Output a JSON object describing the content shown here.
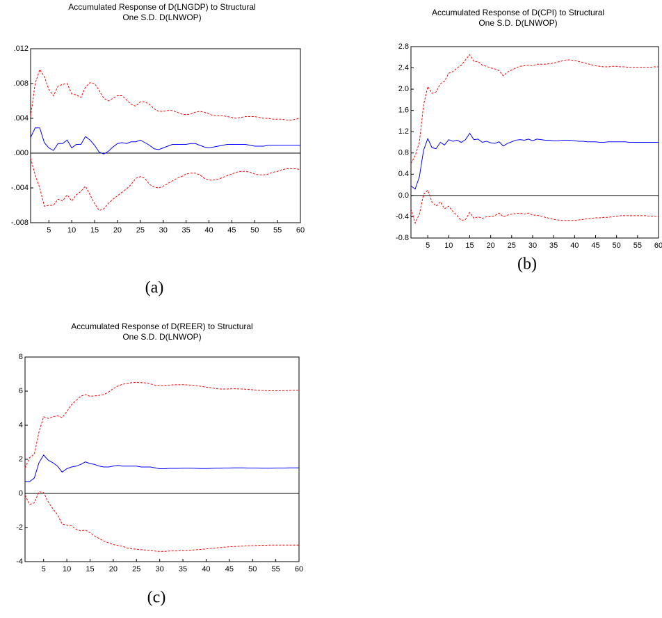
{
  "chart_data": [
    {
      "type": "line",
      "title": [
        "Accumulated Response of D(LNGDP) to Structural",
        "One S.D. D(LNWOP)"
      ],
      "caption": "(a)",
      "x": [
        1,
        2,
        3,
        4,
        5,
        6,
        7,
        8,
        9,
        10,
        11,
        12,
        13,
        14,
        15,
        16,
        17,
        18,
        19,
        20,
        21,
        22,
        23,
        24,
        25,
        26,
        27,
        28,
        29,
        30,
        31,
        32,
        33,
        34,
        35,
        36,
        37,
        38,
        39,
        40,
        41,
        42,
        43,
        44,
        45,
        46,
        47,
        48,
        49,
        50,
        51,
        52,
        53,
        54,
        55,
        56,
        57,
        58,
        59,
        60
      ],
      "xlim": [
        1,
        60
      ],
      "xticks": [
        5,
        10,
        15,
        20,
        25,
        30,
        35,
        40,
        45,
        50,
        55,
        60
      ],
      "ylim": [
        -0.008,
        0.012
      ],
      "yticks": [
        {
          "value": -0.008,
          "label": "-.008"
        },
        {
          "value": -0.004,
          "label": "-.004"
        },
        {
          "value": 0,
          "label": ".000"
        },
        {
          "value": 0.004,
          "label": ".004"
        },
        {
          "value": 0.008,
          "label": ".008"
        },
        {
          "value": 0.012,
          "label": ".012"
        }
      ],
      "series": [
        {
          "color": "#0000ff",
          "dashed": false,
          "values": [
            0.0018,
            0.0029,
            0.0029,
            0.0012,
            0.0006,
            0.0003,
            0.0011,
            0.0011,
            0.0015,
            0.0006,
            0.001,
            0.001,
            0.0019,
            0.0015,
            0.0009,
            0.0001,
            -0.0001,
            0.0002,
            0.0007,
            0.0011,
            0.0012,
            0.0011,
            0.0013,
            0.0013,
            0.0015,
            0.0012,
            0.0009,
            0.0005,
            0.0004,
            0.0006,
            0.0008,
            0.001,
            0.001,
            0.001,
            0.001,
            0.0011,
            0.0011,
            0.0009,
            0.0007,
            0.0006,
            0.0007,
            0.0008,
            0.0009,
            0.001,
            0.001,
            0.001,
            0.001,
            0.001,
            0.0009,
            0.0008,
            0.0008,
            0.0008,
            0.0009,
            0.0009,
            0.0009,
            0.0009,
            0.0009,
            0.0009,
            0.0009,
            0.0009
          ]
        },
        {
          "color": "#ff0000",
          "dashed": true,
          "values": [
            0.0042,
            0.008,
            0.0096,
            0.0088,
            0.0073,
            0.0066,
            0.0077,
            0.0079,
            0.008,
            0.0068,
            0.0067,
            0.0064,
            0.0076,
            0.0081,
            0.008,
            0.0072,
            0.0063,
            0.006,
            0.0063,
            0.0066,
            0.0066,
            0.0061,
            0.0056,
            0.0054,
            0.0059,
            0.0059,
            0.0056,
            0.0051,
            0.0048,
            0.0048,
            0.0049,
            0.0049,
            0.0047,
            0.0045,
            0.0044,
            0.0045,
            0.0047,
            0.0048,
            0.0047,
            0.0045,
            0.0043,
            0.0043,
            0.0043,
            0.0042,
            0.0041,
            0.004,
            0.0041,
            0.0042,
            0.0042,
            0.0042,
            0.0041,
            0.004,
            0.004,
            0.0039,
            0.0039,
            0.0039,
            0.0038,
            0.0038,
            0.0039,
            0.004
          ]
        },
        {
          "color": "#ff0000",
          "dashed": true,
          "values": [
            -0.0006,
            -0.0025,
            -0.004,
            -0.0061,
            -0.006,
            -0.006,
            -0.0053,
            -0.0055,
            -0.0048,
            -0.0055,
            -0.0048,
            -0.0044,
            -0.0038,
            -0.0048,
            -0.0058,
            -0.0066,
            -0.0064,
            -0.0058,
            -0.0053,
            -0.0049,
            -0.0045,
            -0.0041,
            -0.0036,
            -0.0029,
            -0.0027,
            -0.0029,
            -0.0036,
            -0.0039,
            -0.004,
            -0.0038,
            -0.0035,
            -0.0032,
            -0.0029,
            -0.0027,
            -0.0024,
            -0.0023,
            -0.0023,
            -0.0025,
            -0.0029,
            -0.0031,
            -0.0031,
            -0.003,
            -0.0028,
            -0.0026,
            -0.0024,
            -0.0022,
            -0.0021,
            -0.0021,
            -0.0022,
            -0.0024,
            -0.0025,
            -0.0025,
            -0.0024,
            -0.0022,
            -0.0021,
            -0.0019,
            -0.0018,
            -0.0018,
            -0.0018,
            -0.0019
          ]
        }
      ]
    },
    {
      "type": "line",
      "title": [
        "Accumulated Response of D(CPI) to Structural",
        "One S.D. D(LNWOP)"
      ],
      "caption": "(b)",
      "x": [
        1,
        2,
        3,
        4,
        5,
        6,
        7,
        8,
        9,
        10,
        11,
        12,
        13,
        14,
        15,
        16,
        17,
        18,
        19,
        20,
        21,
        22,
        23,
        24,
        25,
        26,
        27,
        28,
        29,
        30,
        31,
        32,
        33,
        34,
        35,
        36,
        37,
        38,
        39,
        40,
        41,
        42,
        43,
        44,
        45,
        46,
        47,
        48,
        49,
        50,
        51,
        52,
        53,
        54,
        55,
        56,
        57,
        58,
        59,
        60
      ],
      "xlim": [
        1,
        60
      ],
      "xticks": [
        5,
        10,
        15,
        20,
        25,
        30,
        35,
        40,
        45,
        50,
        55,
        60
      ],
      "ylim": [
        -0.8,
        2.8
      ],
      "yticks": [
        -0.8,
        -0.4,
        {
          "value": 0,
          "label": "0.0"
        },
        0.4,
        0.8,
        1.2,
        1.6,
        {
          "value": 2,
          "label": "2.0"
        },
        2.4,
        2.8
      ],
      "series": [
        {
          "color": "#0000ff",
          "dashed": false,
          "values": [
            0.18,
            0.12,
            0.35,
            0.85,
            1.07,
            0.9,
            0.88,
            1.0,
            0.95,
            1.05,
            1.02,
            1.04,
            1.0,
            1.05,
            1.17,
            1.05,
            1.06,
            1.0,
            1.02,
            0.99,
            0.98,
            1.01,
            0.93,
            0.98,
            1.01,
            1.04,
            1.05,
            1.04,
            1.06,
            1.03,
            1.06,
            1.05,
            1.04,
            1.04,
            1.03,
            1.03,
            1.04,
            1.04,
            1.04,
            1.03,
            1.02,
            1.02,
            1.01,
            1.01,
            1.01,
            1.0,
            1.0,
            1.01,
            1.01,
            1.01,
            1.01,
            1.01,
            1.0,
            1.0,
            1.0,
            1.0,
            1.0,
            1.0,
            1.0,
            1.0
          ]
        },
        {
          "color": "#ff0000",
          "dashed": true,
          "values": [
            0.6,
            0.75,
            1.0,
            1.7,
            2.05,
            1.92,
            1.95,
            2.1,
            2.15,
            2.3,
            2.33,
            2.4,
            2.45,
            2.55,
            2.65,
            2.52,
            2.52,
            2.45,
            2.43,
            2.4,
            2.38,
            2.35,
            2.25,
            2.32,
            2.36,
            2.4,
            2.43,
            2.44,
            2.45,
            2.44,
            2.47,
            2.47,
            2.47,
            2.48,
            2.49,
            2.51,
            2.53,
            2.55,
            2.55,
            2.54,
            2.52,
            2.5,
            2.48,
            2.46,
            2.44,
            2.43,
            2.42,
            2.42,
            2.43,
            2.43,
            2.42,
            2.42,
            2.41,
            2.41,
            2.41,
            2.41,
            2.41,
            2.41,
            2.42,
            2.42
          ]
        },
        {
          "color": "#ff0000",
          "dashed": true,
          "values": [
            -0.25,
            -0.52,
            -0.35,
            0.02,
            0.1,
            -0.12,
            -0.2,
            -0.12,
            -0.25,
            -0.2,
            -0.3,
            -0.38,
            -0.47,
            -0.45,
            -0.32,
            -0.43,
            -0.4,
            -0.43,
            -0.4,
            -0.4,
            -0.38,
            -0.33,
            -0.4,
            -0.37,
            -0.35,
            -0.34,
            -0.33,
            -0.35,
            -0.33,
            -0.37,
            -0.37,
            -0.39,
            -0.41,
            -0.43,
            -0.45,
            -0.46,
            -0.47,
            -0.47,
            -0.47,
            -0.47,
            -0.46,
            -0.45,
            -0.44,
            -0.43,
            -0.42,
            -0.42,
            -0.41,
            -0.41,
            -0.4,
            -0.39,
            -0.38,
            -0.38,
            -0.38,
            -0.38,
            -0.38,
            -0.38,
            -0.38,
            -0.39,
            -0.39,
            -0.4
          ]
        }
      ]
    },
    {
      "type": "line",
      "title": [
        "Accumulated Response of D(REER) to Structural",
        "One S.D. D(LNWOP)"
      ],
      "caption": "(c)",
      "x": [
        1,
        2,
        3,
        4,
        5,
        6,
        7,
        8,
        9,
        10,
        11,
        12,
        13,
        14,
        15,
        16,
        17,
        18,
        19,
        20,
        21,
        22,
        23,
        24,
        25,
        26,
        27,
        28,
        29,
        30,
        31,
        32,
        33,
        34,
        35,
        36,
        37,
        38,
        39,
        40,
        41,
        42,
        43,
        44,
        45,
        46,
        47,
        48,
        49,
        50,
        51,
        52,
        53,
        54,
        55,
        56,
        57,
        58,
        59,
        60
      ],
      "xlim": [
        1,
        60
      ],
      "xticks": [
        5,
        10,
        15,
        20,
        25,
        30,
        35,
        40,
        45,
        50,
        55,
        60
      ],
      "ylim": [
        -4,
        8
      ],
      "yticks": [
        -4,
        -2,
        0,
        2,
        4,
        6,
        8
      ],
      "series": [
        {
          "color": "#0000ff",
          "dashed": false,
          "values": [
            0.7,
            0.7,
            0.9,
            1.8,
            2.25,
            1.95,
            1.8,
            1.6,
            1.25,
            1.45,
            1.55,
            1.6,
            1.7,
            1.85,
            1.75,
            1.7,
            1.6,
            1.55,
            1.55,
            1.6,
            1.65,
            1.6,
            1.6,
            1.6,
            1.6,
            1.55,
            1.55,
            1.55,
            1.5,
            1.45,
            1.45,
            1.47,
            1.47,
            1.47,
            1.48,
            1.48,
            1.48,
            1.47,
            1.46,
            1.46,
            1.47,
            1.48,
            1.48,
            1.49,
            1.49,
            1.5,
            1.5,
            1.5,
            1.49,
            1.49,
            1.49,
            1.48,
            1.48,
            1.48,
            1.49,
            1.49,
            1.49,
            1.5,
            1.5,
            1.5
          ]
        },
        {
          "color": "#ff0000",
          "dashed": true,
          "values": [
            1.5,
            2.1,
            2.3,
            3.6,
            4.5,
            4.4,
            4.5,
            4.55,
            4.45,
            4.8,
            5.2,
            5.45,
            5.7,
            5.8,
            5.7,
            5.72,
            5.75,
            5.8,
            5.95,
            6.15,
            6.3,
            6.4,
            6.45,
            6.5,
            6.52,
            6.5,
            6.48,
            6.42,
            6.35,
            6.33,
            6.33,
            6.35,
            6.37,
            6.37,
            6.38,
            6.36,
            6.35,
            6.32,
            6.28,
            6.23,
            6.2,
            6.15,
            6.12,
            6.12,
            6.13,
            6.14,
            6.13,
            6.12,
            6.1,
            6.08,
            6.06,
            6.04,
            6.03,
            6.02,
            6.02,
            6.02,
            6.03,
            6.04,
            6.05,
            6.05
          ]
        },
        {
          "color": "#ff0000",
          "dashed": true,
          "values": [
            -0.1,
            -0.65,
            -0.55,
            0.1,
            0.05,
            -0.5,
            -0.9,
            -1.25,
            -1.8,
            -1.85,
            -1.9,
            -2.1,
            -2.2,
            -2.15,
            -2.3,
            -2.5,
            -2.65,
            -2.8,
            -2.9,
            -3.0,
            -3.05,
            -3.1,
            -3.2,
            -3.25,
            -3.27,
            -3.3,
            -3.32,
            -3.35,
            -3.38,
            -3.4,
            -3.4,
            -3.38,
            -3.37,
            -3.37,
            -3.36,
            -3.34,
            -3.32,
            -3.3,
            -3.28,
            -3.25,
            -3.23,
            -3.2,
            -3.18,
            -3.15,
            -3.13,
            -3.11,
            -3.1,
            -3.08,
            -3.07,
            -3.06,
            -3.05,
            -3.04,
            -3.04,
            -3.03,
            -3.03,
            -3.03,
            -3.03,
            -3.03,
            -3.03,
            -3.03
          ]
        }
      ]
    }
  ]
}
